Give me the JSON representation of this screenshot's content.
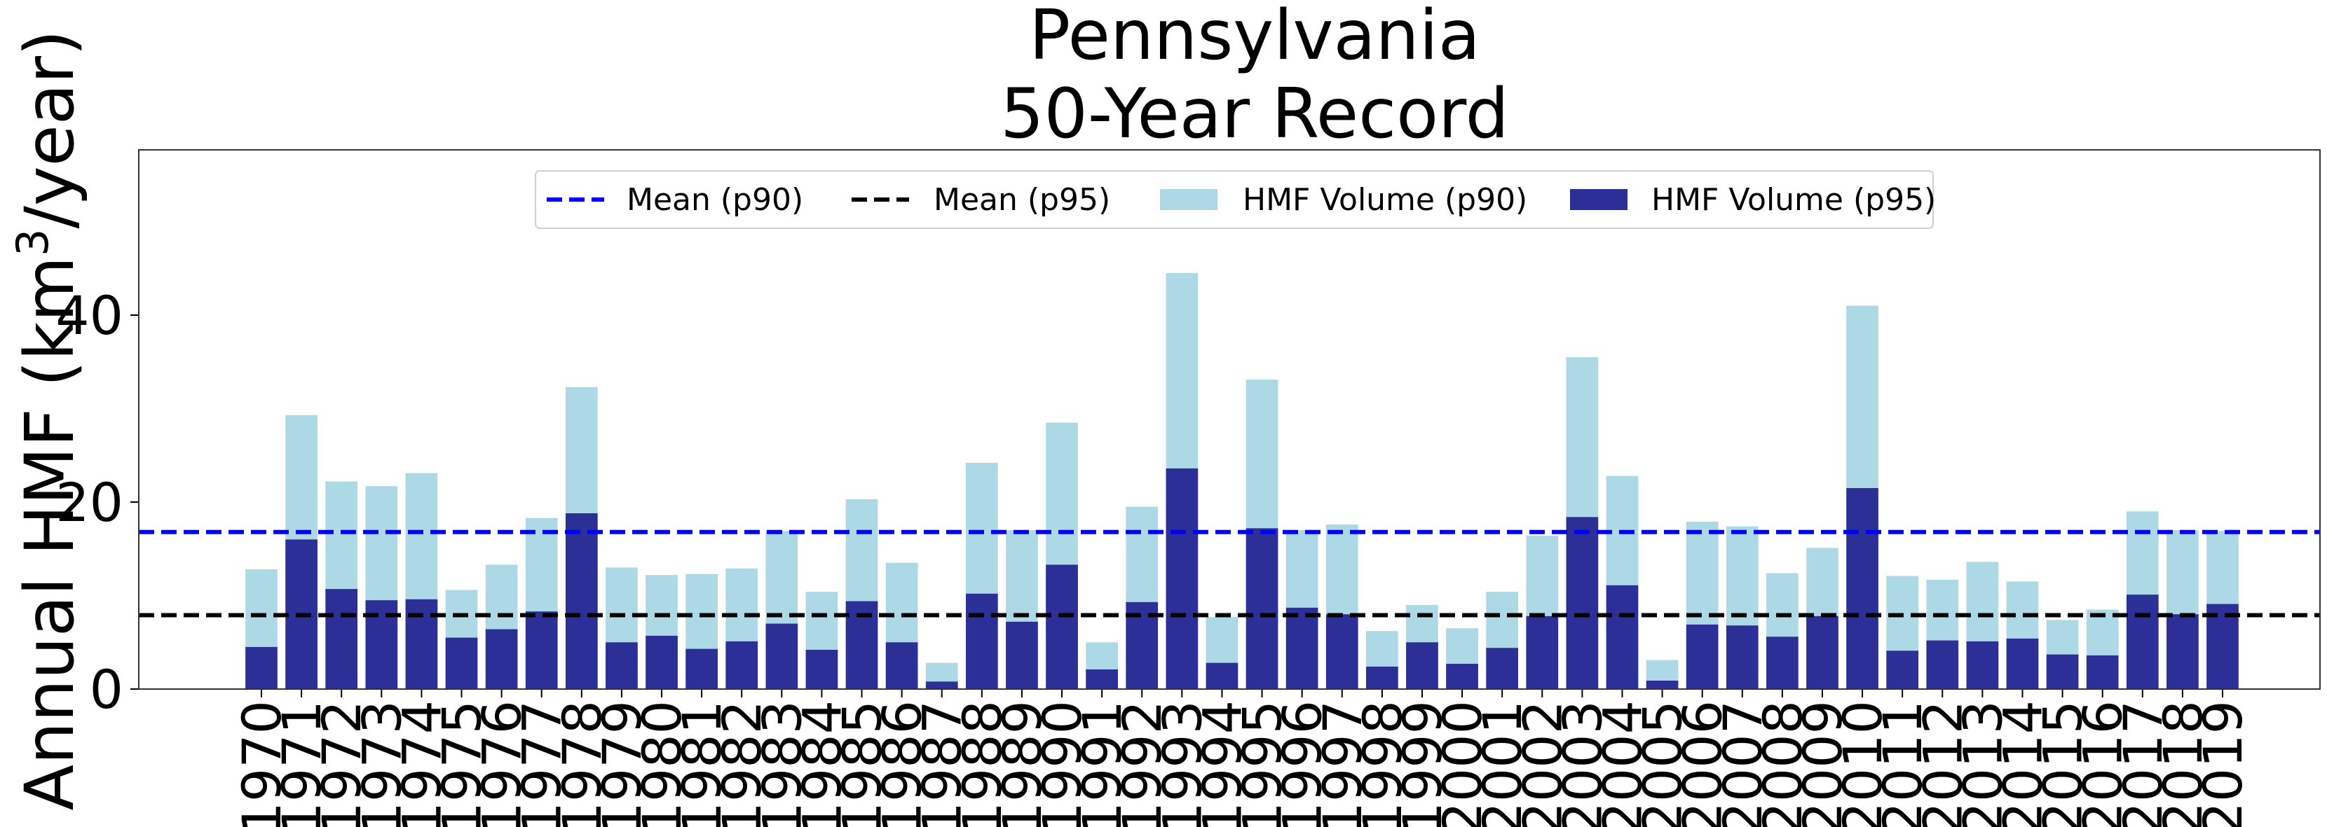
{
  "chart_data": {
    "type": "bar",
    "title_line1": "Pennsylvania",
    "title_line2": "50-Year Record",
    "ylabel": "Annual HMF (km",
    "ylabel_sup": "3",
    "ylabel_tail": "/year)",
    "ylim": [
      0,
      58
    ],
    "yticks": [
      "0",
      "20",
      "40"
    ],
    "categories": [
      "1970",
      "1971",
      "1972",
      "1973",
      "1974",
      "1975",
      "1976",
      "1977",
      "1978",
      "1979",
      "1980",
      "1981",
      "1982",
      "1983",
      "1984",
      "1985",
      "1986",
      "1987",
      "1988",
      "1989",
      "1990",
      "1991",
      "1992",
      "1993",
      "1994",
      "1995",
      "1996",
      "1997",
      "1998",
      "1999",
      "2000",
      "2001",
      "2002",
      "2003",
      "2004",
      "2005",
      "2006",
      "2007",
      "2008",
      "2009",
      "2010",
      "2011",
      "2012",
      "2013",
      "2014",
      "2015",
      "2016",
      "2017",
      "2018",
      "2019"
    ],
    "series": [
      {
        "name": "HMF Volume (p90)",
        "color": "#add8e6",
        "values": [
          12.8,
          29.3,
          22.2,
          21.7,
          23.1,
          10.6,
          13.3,
          18.3,
          32.3,
          13.0,
          12.2,
          12.3,
          12.9,
          16.9,
          10.4,
          20.3,
          13.5,
          2.8,
          24.2,
          17.0,
          28.5,
          5.0,
          19.5,
          44.5,
          7.7,
          33.1,
          17.0,
          17.6,
          6.2,
          9.0,
          6.5,
          10.4,
          16.4,
          35.5,
          22.8,
          3.1,
          17.9,
          17.4,
          12.4,
          15.1,
          41.0,
          12.1,
          11.7,
          13.6,
          11.5,
          7.4,
          8.5,
          19.0,
          17.0,
          16.9
        ]
      },
      {
        "name": "HMF Volume (p95)",
        "color": "#2b2f96",
        "values": [
          4.5,
          16.0,
          10.7,
          9.5,
          9.6,
          5.5,
          6.4,
          8.3,
          18.8,
          5.0,
          5.7,
          4.3,
          5.1,
          7.0,
          4.2,
          9.4,
          5.0,
          0.8,
          10.2,
          7.2,
          13.3,
          2.1,
          9.3,
          23.6,
          2.8,
          17.2,
          8.7,
          8.0,
          2.4,
          5.0,
          2.7,
          4.4,
          7.8,
          18.4,
          11.1,
          0.9,
          6.9,
          6.8,
          5.6,
          7.8,
          21.5,
          4.1,
          5.2,
          5.1,
          5.4,
          3.7,
          3.6,
          10.1,
          8.0,
          9.1
        ]
      }
    ],
    "mean_lines": [
      {
        "name": "Mean (p90)",
        "value": 16.8,
        "color": "#0000ff"
      },
      {
        "name": "Mean (p95)",
        "value": 7.9,
        "color": "#000000"
      }
    ],
    "grid": false,
    "legend_position": "upper-center"
  }
}
